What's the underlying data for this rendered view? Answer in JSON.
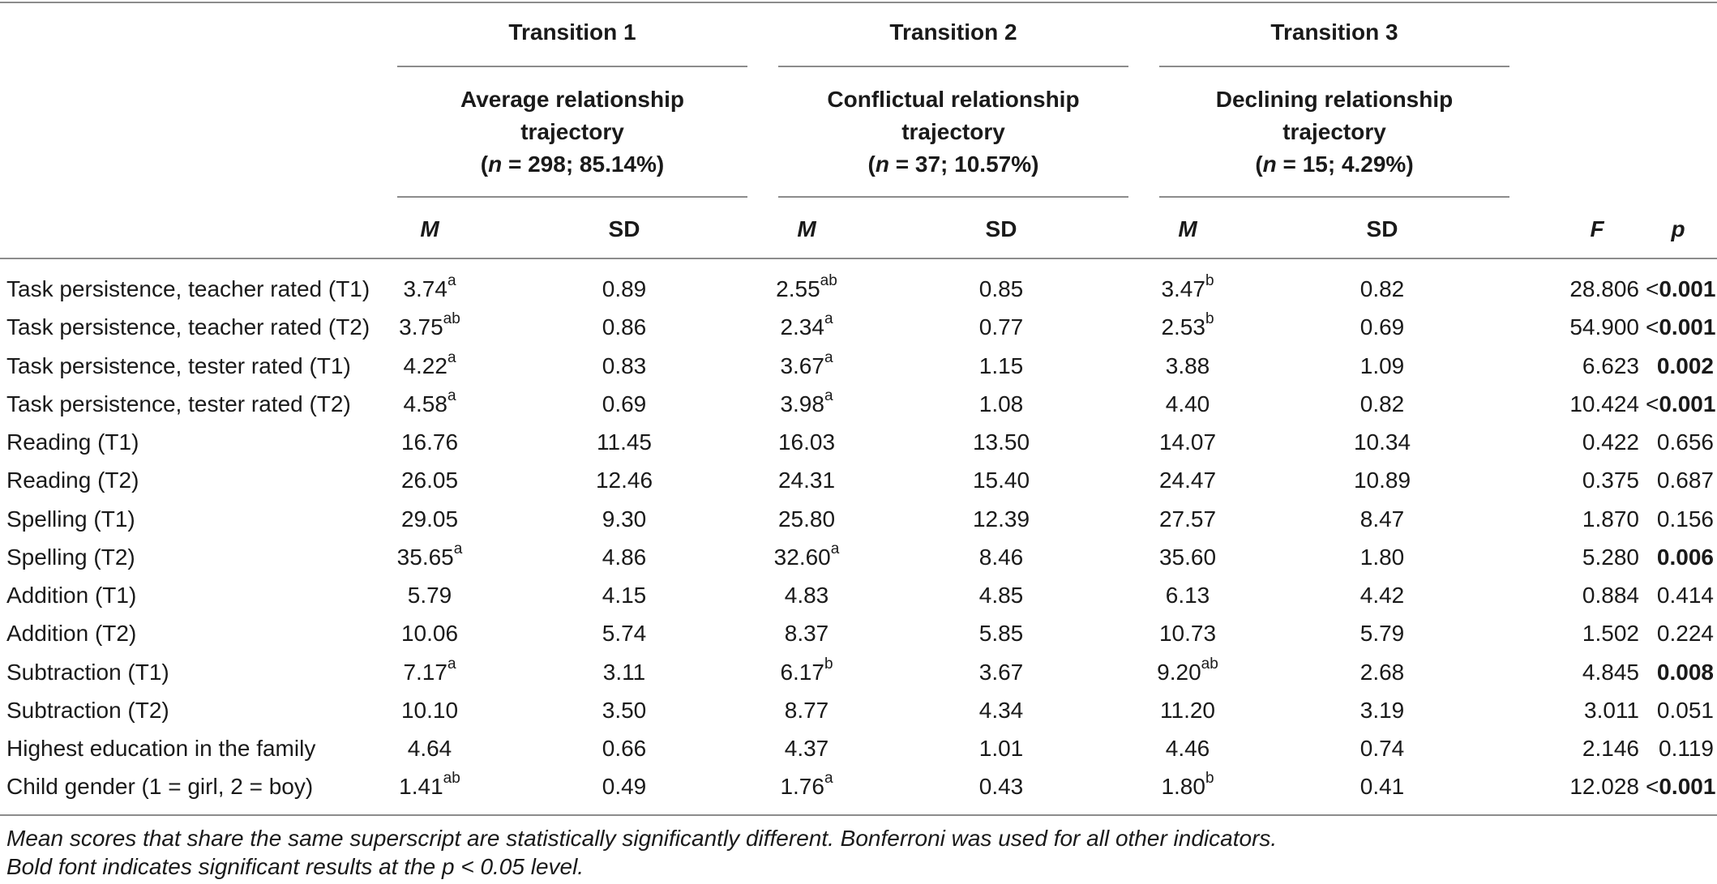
{
  "header": {
    "transitions": [
      "Transition 1",
      "Transition 2",
      "Transition 3"
    ],
    "groups": [
      {
        "line1": "Average relationship",
        "line2": "trajectory",
        "n_label": "n",
        "n_text": " = 298; 85.14%)"
      },
      {
        "line1": "Conflictual relationship",
        "line2": "trajectory",
        "n_label": "n",
        "n_text": " = 37; 10.57%)"
      },
      {
        "line1": "Declining relationship",
        "line2": "trajectory",
        "n_label": "n",
        "n_text": " = 15; 4.29%)"
      }
    ],
    "open_paren": "(",
    "col_m": "M",
    "col_sd": "SD",
    "col_f": "F",
    "col_p": "p"
  },
  "rows": [
    {
      "label": "Task persistence, teacher rated (T1)",
      "m1": "3.74",
      "s1": "a",
      "sd1": "0.89",
      "m2": "2.55",
      "s2": "ab",
      "sd2": "0.85",
      "m3": "3.47",
      "s3": "b",
      "sd3": "0.82",
      "f": "28.806",
      "p_prefix": "<",
      "p": "0.001",
      "bold": true
    },
    {
      "label": "Task persistence, teacher rated (T2)",
      "m1": "3.75",
      "s1": "ab",
      "sd1": "0.86",
      "m2": "2.34",
      "s2": "a",
      "sd2": "0.77",
      "m3": "2.53",
      "s3": "b",
      "sd3": "0.69",
      "f": "54.900",
      "p_prefix": "<",
      "p": "0.001",
      "bold": true
    },
    {
      "label": "Task persistence, tester rated (T1)",
      "m1": "4.22",
      "s1": "a",
      "sd1": "0.83",
      "m2": "3.67",
      "s2": "a",
      "sd2": "1.15",
      "m3": "3.88",
      "s3": "",
      "sd3": "1.09",
      "f": "6.623",
      "p_prefix": "",
      "p": "0.002",
      "bold": true
    },
    {
      "label": "Task persistence, tester rated (T2)",
      "m1": "4.58",
      "s1": "a",
      "sd1": "0.69",
      "m2": "3.98",
      "s2": "a",
      "sd2": "1.08",
      "m3": "4.40",
      "s3": "",
      "sd3": "0.82",
      "f": "10.424",
      "p_prefix": "<",
      "p": "0.001",
      "bold": true
    },
    {
      "label": "Reading (T1)",
      "m1": "16.76",
      "s1": "",
      "sd1": "11.45",
      "m2": "16.03",
      "s2": "",
      "sd2": "13.50",
      "m3": "14.07",
      "s3": "",
      "sd3": "10.34",
      "f": "0.422",
      "p_prefix": "",
      "p": "0.656",
      "bold": false
    },
    {
      "label": "Reading (T2)",
      "m1": "26.05",
      "s1": "",
      "sd1": "12.46",
      "m2": "24.31",
      "s2": "",
      "sd2": "15.40",
      "m3": "24.47",
      "s3": "",
      "sd3": "10.89",
      "f": "0.375",
      "p_prefix": "",
      "p": "0.687",
      "bold": false
    },
    {
      "label": "Spelling (T1)",
      "m1": "29.05",
      "s1": "",
      "sd1": "9.30",
      "m2": "25.80",
      "s2": "",
      "sd2": "12.39",
      "m3": "27.57",
      "s3": "",
      "sd3": "8.47",
      "f": "1.870",
      "p_prefix": "",
      "p": "0.156",
      "bold": false
    },
    {
      "label": "Spelling (T2)",
      "m1": "35.65",
      "s1": "a",
      "sd1": "4.86",
      "m2": "32.60",
      "s2": "a",
      "sd2": "8.46",
      "m3": "35.60",
      "s3": "",
      "sd3": "1.80",
      "f": "5.280",
      "p_prefix": "",
      "p": "0.006",
      "bold": true
    },
    {
      "label": "Addition (T1)",
      "m1": "5.79",
      "s1": "",
      "sd1": "4.15",
      "m2": "4.83",
      "s2": "",
      "sd2": "4.85",
      "m3": "6.13",
      "s3": "",
      "sd3": "4.42",
      "f": "0.884",
      "p_prefix": "",
      "p": "0.414",
      "bold": false
    },
    {
      "label": "Addition (T2)",
      "m1": "10.06",
      "s1": "",
      "sd1": "5.74",
      "m2": "8.37",
      "s2": "",
      "sd2": "5.85",
      "m3": "10.73",
      "s3": "",
      "sd3": "5.79",
      "f": "1.502",
      "p_prefix": "",
      "p": "0.224",
      "bold": false
    },
    {
      "label": "Subtraction (T1)",
      "m1": "7.17",
      "s1": "a",
      "sd1": "3.11",
      "m2": "6.17",
      "s2": "b",
      "sd2": "3.67",
      "m3": "9.20",
      "s3": "ab",
      "sd3": "2.68",
      "f": "4.845",
      "p_prefix": "",
      "p": "0.008",
      "bold": true
    },
    {
      "label": "Subtraction (T2)",
      "m1": "10.10",
      "s1": "",
      "sd1": "3.50",
      "m2": "8.77",
      "s2": "",
      "sd2": "4.34",
      "m3": "11.20",
      "s3": "",
      "sd3": "3.19",
      "f": "3.011",
      "p_prefix": "",
      "p": "0.051",
      "bold": false
    },
    {
      "label": "Highest education in the family",
      "m1": "4.64",
      "s1": "",
      "sd1": "0.66",
      "m2": "4.37",
      "s2": "",
      "sd2": "1.01",
      "m3": "4.46",
      "s3": "",
      "sd3": "0.74",
      "f": "2.146",
      "p_prefix": "",
      "p": "0.119",
      "bold": false
    },
    {
      "label": "Child gender (1 = girl, 2 = boy)",
      "m1": "1.41",
      "s1": "ab",
      "sd1": "0.49",
      "m2": "1.76",
      "s2": "a",
      "sd2": "0.43",
      "m3": "1.80",
      "s3": "b",
      "sd3": "0.41",
      "f": "12.028",
      "p_prefix": "<",
      "p": "0.001",
      "bold": true
    }
  ],
  "notes": {
    "line1": "Mean scores that share the same superscript are statistically significantly different. Bonferroni was used for all other indicators.",
    "line2": "Bold font indicates significant results at the p < 0.05 level."
  }
}
